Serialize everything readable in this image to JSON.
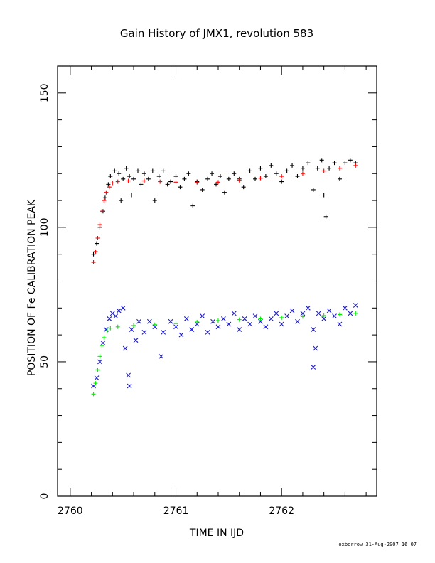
{
  "chart_data": {
    "type": "scatter",
    "title": "Gain History of JMX1, revolution 583",
    "xlabel": "TIME IN IJD",
    "ylabel": "POSITION OF Fe CALIBRATION PEAK",
    "xlim": [
      2759.88,
      2762.9
    ],
    "ylim": [
      0,
      160
    ],
    "x_ticks": [
      2760,
      2761,
      2762
    ],
    "x_tick_labels": [
      "2760",
      "2761",
      "2762"
    ],
    "y_ticks": [
      0,
      50,
      100,
      150
    ],
    "y_tick_labels": [
      "0",
      "50",
      "100",
      "150"
    ],
    "footer": "oxborrow 31-Aug-2007 16:07",
    "series": [
      {
        "marker": "+",
        "color": "#000000",
        "points": [
          [
            2760.22,
            90.0
          ],
          [
            2760.25,
            94.0
          ],
          [
            2760.28,
            100.0
          ],
          [
            2760.31,
            106.0
          ],
          [
            2760.33,
            111.0
          ],
          [
            2760.36,
            116.0
          ],
          [
            2760.38,
            119.0
          ],
          [
            2760.42,
            121.0
          ],
          [
            2760.46,
            120.0
          ],
          [
            2760.48,
            110.0
          ],
          [
            2760.5,
            118.0
          ],
          [
            2760.53,
            122.0
          ],
          [
            2760.56,
            119.0
          ],
          [
            2760.58,
            112.0
          ],
          [
            2760.6,
            118.0
          ],
          [
            2760.64,
            121.0
          ],
          [
            2760.67,
            116.0
          ],
          [
            2760.7,
            120.0
          ],
          [
            2760.74,
            118.0
          ],
          [
            2760.78,
            121.0
          ],
          [
            2760.8,
            110.0
          ],
          [
            2760.84,
            119.0
          ],
          [
            2760.88,
            121.0
          ],
          [
            2760.92,
            116.0
          ],
          [
            2760.95,
            117.0
          ],
          [
            2761.0,
            119.0
          ],
          [
            2761.04,
            115.0
          ],
          [
            2761.08,
            118.0
          ],
          [
            2761.12,
            120.0
          ],
          [
            2761.16,
            108.0
          ],
          [
            2761.2,
            117.0
          ],
          [
            2761.25,
            114.0
          ],
          [
            2761.3,
            118.0
          ],
          [
            2761.34,
            120.0
          ],
          [
            2761.38,
            116.0
          ],
          [
            2761.42,
            119.0
          ],
          [
            2761.46,
            113.0
          ],
          [
            2761.5,
            118.0
          ],
          [
            2761.55,
            120.0
          ],
          [
            2761.6,
            118.0
          ],
          [
            2761.64,
            115.0
          ],
          [
            2761.7,
            121.0
          ],
          [
            2761.75,
            118.0
          ],
          [
            2761.8,
            122.0
          ],
          [
            2761.85,
            119.0
          ],
          [
            2761.9,
            123.0
          ],
          [
            2761.95,
            120.0
          ],
          [
            2762.0,
            117.0
          ],
          [
            2762.05,
            121.0
          ],
          [
            2762.1,
            123.0
          ],
          [
            2762.15,
            119.0
          ],
          [
            2762.2,
            122.0
          ],
          [
            2762.25,
            124.0
          ],
          [
            2762.3,
            114.0
          ],
          [
            2762.34,
            122.0
          ],
          [
            2762.38,
            125.0
          ],
          [
            2762.4,
            112.0
          ],
          [
            2762.42,
            104.0
          ],
          [
            2762.45,
            122.0
          ],
          [
            2762.5,
            124.0
          ],
          [
            2762.55,
            118.0
          ],
          [
            2762.6,
            124.0
          ],
          [
            2762.65,
            125.0
          ],
          [
            2762.7,
            124.0
          ]
        ]
      },
      {
        "marker": "+",
        "color": "#ff0000",
        "points": [
          [
            2760.22,
            87.0
          ],
          [
            2760.24,
            91.0
          ],
          [
            2760.26,
            96.0
          ],
          [
            2760.28,
            101.0
          ],
          [
            2760.3,
            106.0
          ],
          [
            2760.32,
            110.0
          ],
          [
            2760.34,
            113.0
          ],
          [
            2760.37,
            115.0
          ],
          [
            2760.4,
            116.5
          ],
          [
            2760.45,
            117.0
          ],
          [
            2760.55,
            117.3
          ],
          [
            2760.7,
            117.3
          ],
          [
            2760.85,
            117.0
          ],
          [
            2761.0,
            116.8
          ],
          [
            2761.2,
            116.7
          ],
          [
            2761.4,
            116.8
          ],
          [
            2761.6,
            117.5
          ],
          [
            2761.8,
            118.3
          ],
          [
            2762.0,
            119.0
          ],
          [
            2762.2,
            120.0
          ],
          [
            2762.4,
            121.0
          ],
          [
            2762.55,
            122.0
          ],
          [
            2762.7,
            123.0
          ]
        ]
      },
      {
        "marker": "x",
        "color": "#1a1acc",
        "points": [
          [
            2760.22,
            41.0
          ],
          [
            2760.25,
            44.0
          ],
          [
            2760.28,
            50.0
          ],
          [
            2760.31,
            57.0
          ],
          [
            2760.34,
            62.0
          ],
          [
            2760.37,
            66.0
          ],
          [
            2760.4,
            68.0
          ],
          [
            2760.43,
            67.0
          ],
          [
            2760.46,
            69.0
          ],
          [
            2760.5,
            70.0
          ],
          [
            2760.52,
            55.0
          ],
          [
            2760.55,
            45.0
          ],
          [
            2760.56,
            41.0
          ],
          [
            2760.58,
            62.0
          ],
          [
            2760.62,
            58.0
          ],
          [
            2760.65,
            65.0
          ],
          [
            2760.7,
            61.0
          ],
          [
            2760.75,
            65.0
          ],
          [
            2760.8,
            63.0
          ],
          [
            2760.86,
            52.0
          ],
          [
            2760.88,
            61.0
          ],
          [
            2760.95,
            65.0
          ],
          [
            2761.0,
            63.0
          ],
          [
            2761.05,
            60.0
          ],
          [
            2761.1,
            66.0
          ],
          [
            2761.15,
            62.0
          ],
          [
            2761.2,
            64.0
          ],
          [
            2761.25,
            67.0
          ],
          [
            2761.3,
            61.0
          ],
          [
            2761.35,
            65.0
          ],
          [
            2761.4,
            63.0
          ],
          [
            2761.45,
            66.0
          ],
          [
            2761.5,
            64.0
          ],
          [
            2761.55,
            68.0
          ],
          [
            2761.6,
            62.0
          ],
          [
            2761.65,
            66.0
          ],
          [
            2761.7,
            64.0
          ],
          [
            2761.75,
            67.0
          ],
          [
            2761.8,
            65.0
          ],
          [
            2761.85,
            63.0
          ],
          [
            2761.9,
            66.0
          ],
          [
            2761.95,
            68.0
          ],
          [
            2762.0,
            64.0
          ],
          [
            2762.05,
            67.0
          ],
          [
            2762.1,
            69.0
          ],
          [
            2762.15,
            65.0
          ],
          [
            2762.2,
            68.0
          ],
          [
            2762.25,
            70.0
          ],
          [
            2762.3,
            62.0
          ],
          [
            2762.32,
            55.0
          ],
          [
            2762.3,
            48.0
          ],
          [
            2762.35,
            68.0
          ],
          [
            2762.4,
            66.0
          ],
          [
            2762.45,
            69.0
          ],
          [
            2762.5,
            67.0
          ],
          [
            2762.55,
            64.0
          ],
          [
            2762.6,
            70.0
          ],
          [
            2762.65,
            68.0
          ],
          [
            2762.7,
            71.0
          ]
        ]
      },
      {
        "marker": "+",
        "color": "#00ee00",
        "points": [
          [
            2760.22,
            38.0
          ],
          [
            2760.24,
            42.0
          ],
          [
            2760.26,
            47.0
          ],
          [
            2760.28,
            52.0
          ],
          [
            2760.3,
            56.0
          ],
          [
            2760.32,
            59.0
          ],
          [
            2760.35,
            61.5
          ],
          [
            2760.38,
            62.5
          ],
          [
            2760.45,
            63.0
          ],
          [
            2760.6,
            63.5
          ],
          [
            2760.8,
            63.8
          ],
          [
            2761.0,
            64.2
          ],
          [
            2761.2,
            64.8
          ],
          [
            2761.4,
            65.3
          ],
          [
            2761.6,
            65.7
          ],
          [
            2761.8,
            66.0
          ],
          [
            2762.0,
            66.4
          ],
          [
            2762.2,
            66.8
          ],
          [
            2762.4,
            67.2
          ],
          [
            2762.55,
            67.6
          ],
          [
            2762.7,
            68.0
          ]
        ]
      }
    ]
  }
}
